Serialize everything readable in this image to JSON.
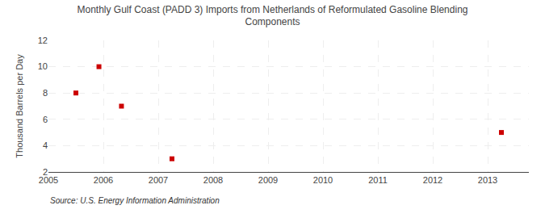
{
  "chart_data": {
    "type": "scatter",
    "title": "Monthly Gulf Coast (PADD 3) Imports from Netherlands of Reformulated Gasoline Blending\nComponents",
    "ylabel": "Thousand Barrels per Day",
    "annotations": [
      "Source: U.S. Energy Information Administration"
    ],
    "x": [
      2005.5,
      2005.92,
      2006.33,
      2007.25,
      2013.25
    ],
    "values": [
      8,
      10,
      7,
      3,
      5
    ],
    "color": "#cc0000",
    "marker": "square",
    "xlim": [
      2005,
      2013.75
    ],
    "ylim": [
      2,
      12
    ],
    "xticks": [
      2005,
      2006,
      2007,
      2008,
      2009,
      2010,
      2011,
      2012,
      2013
    ],
    "yticks": [
      2,
      4,
      6,
      8,
      10,
      12
    ],
    "grid": true
  }
}
